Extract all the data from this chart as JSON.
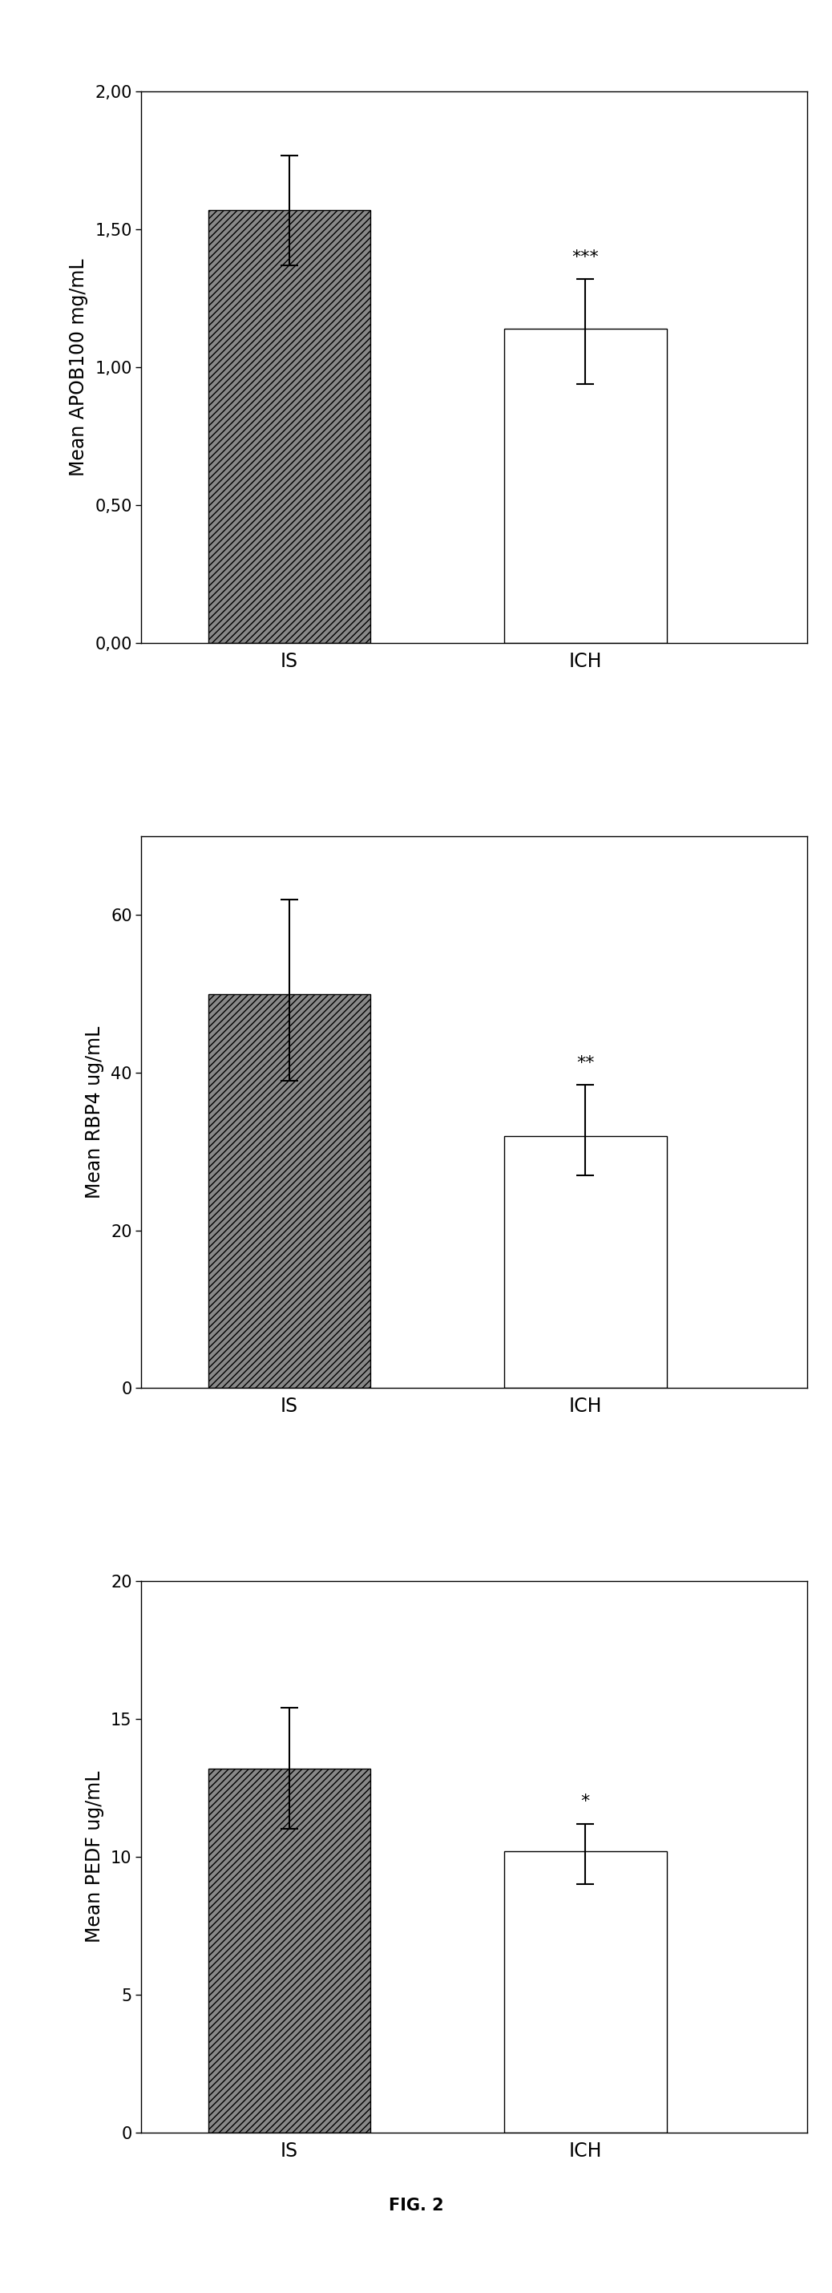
{
  "charts": [
    {
      "ylabel": "Mean APOB100 mg/mL",
      "categories": [
        "IS",
        "ICH"
      ],
      "values": [
        1.57,
        1.14
      ],
      "errors_upper": [
        0.2,
        0.18
      ],
      "errors_lower": [
        0.2,
        0.2
      ],
      "bar_colors": [
        "#888888",
        "#ffffff"
      ],
      "ylim": [
        0.0,
        2.0
      ],
      "yticks": [
        0.0,
        0.5,
        1.0,
        1.5,
        2.0
      ],
      "ytick_labels": [
        "0,00",
        "0,50",
        "1,00",
        "1,50",
        "2,00"
      ],
      "significance": [
        "",
        "***"
      ],
      "sig_fontsize": 16
    },
    {
      "ylabel": "Mean RBP4 ug/mL",
      "categories": [
        "IS",
        "ICH"
      ],
      "values": [
        50.0,
        32.0
      ],
      "errors_upper": [
        12.0,
        6.5
      ],
      "errors_lower": [
        11.0,
        5.0
      ],
      "bar_colors": [
        "#888888",
        "#ffffff"
      ],
      "ylim": [
        0,
        70
      ],
      "yticks": [
        0,
        20,
        40,
        60
      ],
      "ytick_labels": [
        "0",
        "20",
        "40",
        "60"
      ],
      "significance": [
        "",
        "**"
      ],
      "sig_fontsize": 16
    },
    {
      "ylabel": "Mean PEDF ug/mL",
      "categories": [
        "IS",
        "ICH"
      ],
      "values": [
        13.2,
        10.2
      ],
      "errors_upper": [
        2.2,
        1.0
      ],
      "errors_lower": [
        2.2,
        1.2
      ],
      "bar_colors": [
        "#888888",
        "#ffffff"
      ],
      "ylim": [
        0,
        20
      ],
      "yticks": [
        0,
        5,
        10,
        15,
        20
      ],
      "ytick_labels": [
        "0",
        "5",
        "10",
        "15",
        "20"
      ],
      "significance": [
        "",
        "*"
      ],
      "sig_fontsize": 16
    }
  ],
  "figure_label": "FIG. 2",
  "background_color": "#ffffff",
  "bar_width": 0.55,
  "bar_positions": [
    1,
    2
  ],
  "xlim": [
    0.5,
    2.75
  ],
  "errorbar_color": "#000000",
  "errorbar_linewidth": 1.5,
  "errorbar_capsize": 8,
  "errorbar_capthick": 1.5,
  "axis_linewidth": 1.0,
  "tick_fontsize": 15,
  "ylabel_fontsize": 17,
  "xlabel_fontsize": 17,
  "fig_label_fontsize": 15,
  "hatch_pattern": "////"
}
